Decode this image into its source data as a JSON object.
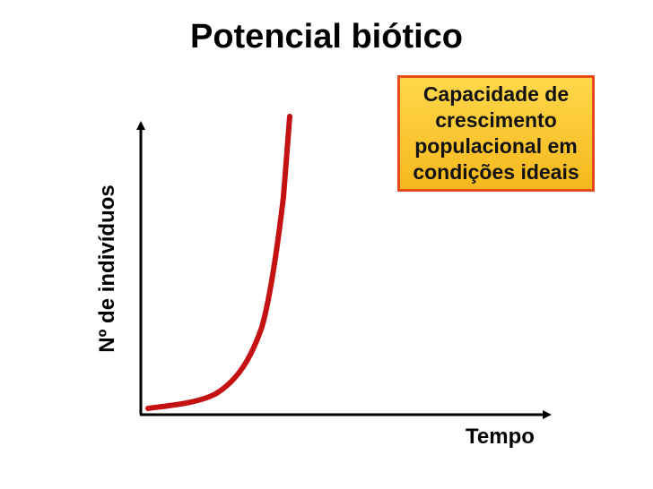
{
  "title": "Potencial biótico",
  "callout": {
    "text": "Capacidade de\ncrescimento\npopulacional em\ncondições ideais"
  },
  "axes": {
    "ylabel": "Nº de indivíduos",
    "xlabel": "Tempo"
  },
  "colors": {
    "curve": "#c41212",
    "axis": "#000000",
    "callout_fill": "#f6b71d",
    "callout_border": "#e84a1a"
  },
  "chart_data": {
    "type": "line",
    "curve": "exponential (J-shaped) growth",
    "grid": false,
    "legend": "none"
  }
}
